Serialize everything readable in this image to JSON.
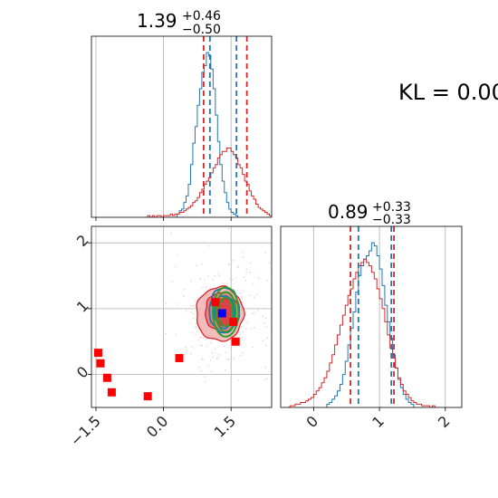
{
  "colors": {
    "red": "#d62728",
    "blue": "#1f77b4",
    "green": "#2ca02c",
    "marker_red": "#ff0000",
    "marker_blue": "#0000ff",
    "grid": "#b0b0b0"
  },
  "chart_data": [
    {
      "type": "histogram",
      "panel": "top-left (marginal of parameter 1)",
      "title": "1.39^{+0.46}_{-0.50}",
      "title_main": "1.39",
      "title_sup": "+0.46",
      "title_sub": "−0.50",
      "xlim": [
        -1.6,
        2.4
      ],
      "series": [
        {
          "color": "#1f77b4",
          "bin_edges_start": 0.3,
          "bin_width": 0.05,
          "values": [
            2,
            4,
            5,
            9,
            13,
            20,
            32,
            45,
            55,
            68,
            78,
            88,
            92,
            100,
            98,
            90,
            78,
            62,
            46,
            32,
            22,
            15,
            9,
            5,
            3,
            2,
            1
          ]
        },
        {
          "color": "#d62728",
          "bin_edges_start": -0.4,
          "bin_width": 0.05,
          "values": [
            0,
            1,
            0,
            1,
            0,
            1,
            1,
            0,
            1,
            1,
            1,
            2,
            1,
            2,
            2,
            3,
            3,
            4,
            5,
            6,
            7,
            9,
            10,
            12,
            15,
            17,
            20,
            22,
            24,
            27,
            30,
            32,
            36,
            38,
            40,
            40,
            42,
            42,
            40,
            38,
            36,
            32,
            30,
            26,
            22,
            20,
            16,
            13,
            11,
            8,
            6,
            5,
            4,
            3,
            2,
            1,
            1,
            1
          ]
        }
      ],
      "quantile_lines": {
        "red": [
          0.89,
          1.85
        ],
        "blue": [
          1.03,
          1.62
        ]
      }
    },
    {
      "type": "contour",
      "panel": "bottom-left (joint of parameter 1 vs parameter 2)",
      "xlim": [
        -1.6,
        2.4
      ],
      "ylim": [
        -0.5,
        2.25
      ],
      "xticks": [
        "−1.5",
        "0.0",
        "1.5"
      ],
      "xtick_values": [
        -1.5,
        0.0,
        1.5
      ],
      "yticks": [
        "0",
        "1",
        "2"
      ],
      "ytick_values": [
        0,
        1,
        2
      ],
      "red_contours": [
        {
          "center": [
            1.25,
            0.92
          ],
          "rx": 1.05,
          "ry": 0.82,
          "level": "outer"
        },
        {
          "center": [
            1.3,
            0.95
          ],
          "rx": 0.75,
          "ry": 0.6,
          "level": "middle"
        },
        {
          "center": [
            1.35,
            0.95
          ],
          "rx": 0.45,
          "ry": 0.42,
          "level": "inner"
        }
      ],
      "blue_contours": [
        {
          "center": [
            1.35,
            0.98
          ],
          "rx": 0.6,
          "ry": 0.62
        },
        {
          "center": [
            1.35,
            0.95
          ],
          "rx": 0.4,
          "ry": 0.45
        }
      ],
      "green_contours": [
        {
          "center": [
            1.38,
            0.95
          ],
          "rx": 0.52,
          "ry": 0.68
        },
        {
          "center": [
            1.38,
            0.95
          ],
          "rx": 0.4,
          "ry": 0.55
        },
        {
          "center": [
            1.38,
            0.95
          ],
          "rx": 0.28,
          "ry": 0.4
        }
      ],
      "red_markers": [
        [
          -1.45,
          0.33
        ],
        [
          -1.4,
          0.17
        ],
        [
          -1.25,
          -0.05
        ],
        [
          -1.15,
          -0.27
        ],
        [
          -0.35,
          -0.33
        ],
        [
          0.35,
          0.25
        ],
        [
          1.15,
          1.1
        ],
        [
          1.55,
          0.8
        ],
        [
          1.6,
          0.5
        ]
      ],
      "blue_marker": [
        1.3,
        0.93
      ]
    },
    {
      "type": "histogram",
      "panel": "bottom-right (marginal of parameter 2)",
      "title": "0.89^{+0.33}_{-0.33}",
      "title_main": "0.89",
      "title_sup": "+0.33",
      "title_sub": "−0.33",
      "xlim": [
        -0.5,
        2.25
      ],
      "xticks": [
        "0",
        "1",
        "2"
      ],
      "xtick_values": [
        0,
        1,
        2
      ],
      "series": [
        {
          "color": "#1f77b4",
          "bin_edges_start": 0.2,
          "bin_width": 0.04,
          "values": [
            2,
            3,
            5,
            7,
            10,
            14,
            20,
            28,
            38,
            48,
            58,
            70,
            80,
            86,
            90,
            92,
            95,
            100,
            98,
            92,
            84,
            74,
            62,
            52,
            42,
            32,
            24,
            17,
            12,
            8,
            5,
            3,
            2
          ]
        },
        {
          "color": "#d62728",
          "bin_edges_start": -0.4,
          "bin_width": 0.04,
          "values": [
            0,
            1,
            1,
            2,
            2,
            3,
            3,
            4,
            5,
            6,
            8,
            10,
            12,
            15,
            18,
            22,
            27,
            32,
            38,
            44,
            50,
            56,
            62,
            68,
            72,
            78,
            82,
            86,
            88,
            90,
            88,
            86,
            82,
            78,
            72,
            66,
            60,
            52,
            44,
            36,
            30,
            24,
            18,
            14,
            10,
            8,
            6,
            4,
            3,
            2,
            2,
            1,
            1,
            1,
            0,
            1,
            0
          ]
        }
      ],
      "quantile_lines": {
        "red": [
          0.56,
          1.22
        ],
        "blue": [
          0.68,
          1.18
        ]
      }
    },
    {
      "type": "annotation",
      "panel": "top-right",
      "text": "KL = 0.00"
    }
  ]
}
